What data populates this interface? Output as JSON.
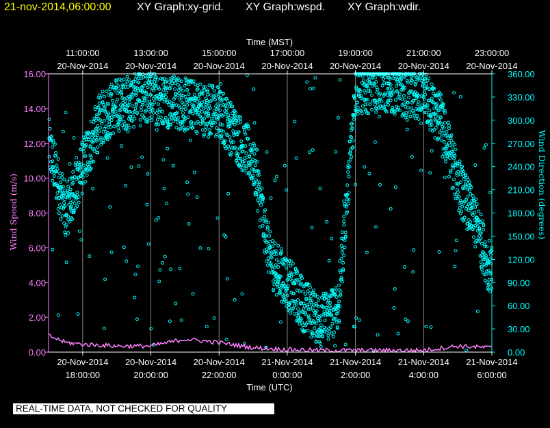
{
  "header": {
    "timestamp": "21-nov-2014,06:00:00",
    "graph_titles": [
      "XY Graph:xy-grid.",
      "XY Graph:wspd.",
      "XY Graph:wdir."
    ]
  },
  "footer": {
    "quality_notice": "REAL-TIME DATA, NOT CHECKED FOR QUALITY"
  },
  "colors": {
    "background": "#000000",
    "axis": "#ffffff",
    "wind_speed": "#ff80ff",
    "wind_direction": "#00ffff",
    "timestamp": "#ffff00"
  },
  "chart_data": {
    "type": "scatter",
    "x_top_label": "Time (MST)",
    "x_bottom_label": "Time (UTC)",
    "x_range_utc": [
      "2014-11-20 17:00",
      "2014-11-21 06:00"
    ],
    "top_ticks": [
      {
        "utc": "2014-11-20 18:00",
        "time": "11:00:00",
        "date": "20-Nov-2014"
      },
      {
        "utc": "2014-11-20 20:00",
        "time": "13:00:00",
        "date": "20-Nov-2014"
      },
      {
        "utc": "2014-11-20 22:00",
        "time": "15:00:00",
        "date": "20-Nov-2014"
      },
      {
        "utc": "2014-11-21 00:00",
        "time": "17:00:00",
        "date": "20-Nov-2014"
      },
      {
        "utc": "2014-11-21 02:00",
        "time": "19:00:00",
        "date": "20-Nov-2014"
      },
      {
        "utc": "2014-11-21 04:00",
        "time": "21:00:00",
        "date": "20-Nov-2014"
      },
      {
        "utc": "2014-11-21 06:00",
        "time": "23:00:00",
        "date": "20-Nov-2014"
      }
    ],
    "bottom_ticks": [
      {
        "utc": "2014-11-20 18:00",
        "date": "20-Nov-2014",
        "time": "18:00:00"
      },
      {
        "utc": "2014-11-20 20:00",
        "date": "20-Nov-2014",
        "time": "20:00:00"
      },
      {
        "utc": "2014-11-20 22:00",
        "date": "20-Nov-2014",
        "time": "22:00:00"
      },
      {
        "utc": "2014-11-21 00:00",
        "date": "21-Nov-2014",
        "time": "0:00:00"
      },
      {
        "utc": "2014-11-21 02:00",
        "date": "21-Nov-2014",
        "time": "2:00:00"
      },
      {
        "utc": "2014-11-21 04:00",
        "date": "21-Nov-2014",
        "time": "4:00:00"
      },
      {
        "utc": "2014-11-21 06:00",
        "date": "21-Nov-2014",
        "time": "6:00:00"
      }
    ],
    "y_left": {
      "label": "Wind Speed (m/s)",
      "range": [
        0,
        16
      ],
      "ticks": [
        "0.00",
        "2.00",
        "4.00",
        "6.00",
        "8.00",
        "10.00",
        "12.00",
        "14.00",
        "16.00"
      ]
    },
    "y_right": {
      "label": "Wind Direction (degrees)",
      "range": [
        0,
        360
      ],
      "ticks": [
        "0.00",
        "30.00",
        "60.00",
        "90.00",
        "120.00",
        "150.00",
        "180.00",
        "210.00",
        "240.00",
        "270.00",
        "300.00",
        "330.00",
        "360.00"
      ]
    },
    "grid": "vertical lines at labeled times",
    "series": [
      {
        "name": "wspd",
        "style": "line",
        "approx_points_utc": [
          [
            "2014-11-20 17:00",
            0.9
          ],
          [
            "2014-11-20 17:30",
            0.5
          ],
          [
            "2014-11-20 18:00",
            0.4
          ],
          [
            "2014-11-20 19:00",
            0.3
          ],
          [
            "2014-11-20 20:00",
            0.3
          ],
          [
            "2014-11-20 21:00",
            0.7
          ],
          [
            "2014-11-20 22:00",
            0.5
          ],
          [
            "2014-11-20 23:00",
            0.2
          ],
          [
            "2014-11-21 00:00",
            0.1
          ],
          [
            "2014-11-21 01:00",
            0.05
          ],
          [
            "2014-11-21 02:00",
            0.05
          ],
          [
            "2014-11-21 03:00",
            0.05
          ],
          [
            "2014-11-21 04:00",
            0.05
          ],
          [
            "2014-11-21 05:00",
            0.3
          ],
          [
            "2014-11-21 06:00",
            0.2
          ]
        ]
      },
      {
        "name": "wdir",
        "style": "markers",
        "approx_band_utc": [
          [
            "2014-11-20 17:00",
            270
          ],
          [
            "2014-11-20 17:30",
            180
          ],
          [
            "2014-11-20 18:00",
            240
          ],
          [
            "2014-11-20 18:30",
            300
          ],
          [
            "2014-11-20 19:00",
            320
          ],
          [
            "2014-11-20 20:00",
            330
          ],
          [
            "2014-11-20 21:00",
            320
          ],
          [
            "2014-11-20 22:00",
            310
          ],
          [
            "2014-11-20 23:00",
            250
          ],
          [
            "2014-11-20 23:30",
            120
          ],
          [
            "2014-11-21 00:00",
            90
          ],
          [
            "2014-11-21 00:30",
            60
          ],
          [
            "2014-11-21 01:00",
            40
          ],
          [
            "2014-11-21 01:30",
            60
          ],
          [
            "2014-11-21 02:00",
            340
          ],
          [
            "2014-11-21 02:30",
            345
          ],
          [
            "2014-11-21 03:00",
            345
          ],
          [
            "2014-11-21 03:30",
            335
          ],
          [
            "2014-11-21 04:00",
            330
          ],
          [
            "2014-11-21 04:30",
            300
          ],
          [
            "2014-11-21 05:00",
            220
          ],
          [
            "2014-11-21 05:30",
            170
          ],
          [
            "2014-11-21 06:00",
            100
          ]
        ]
      }
    ]
  }
}
